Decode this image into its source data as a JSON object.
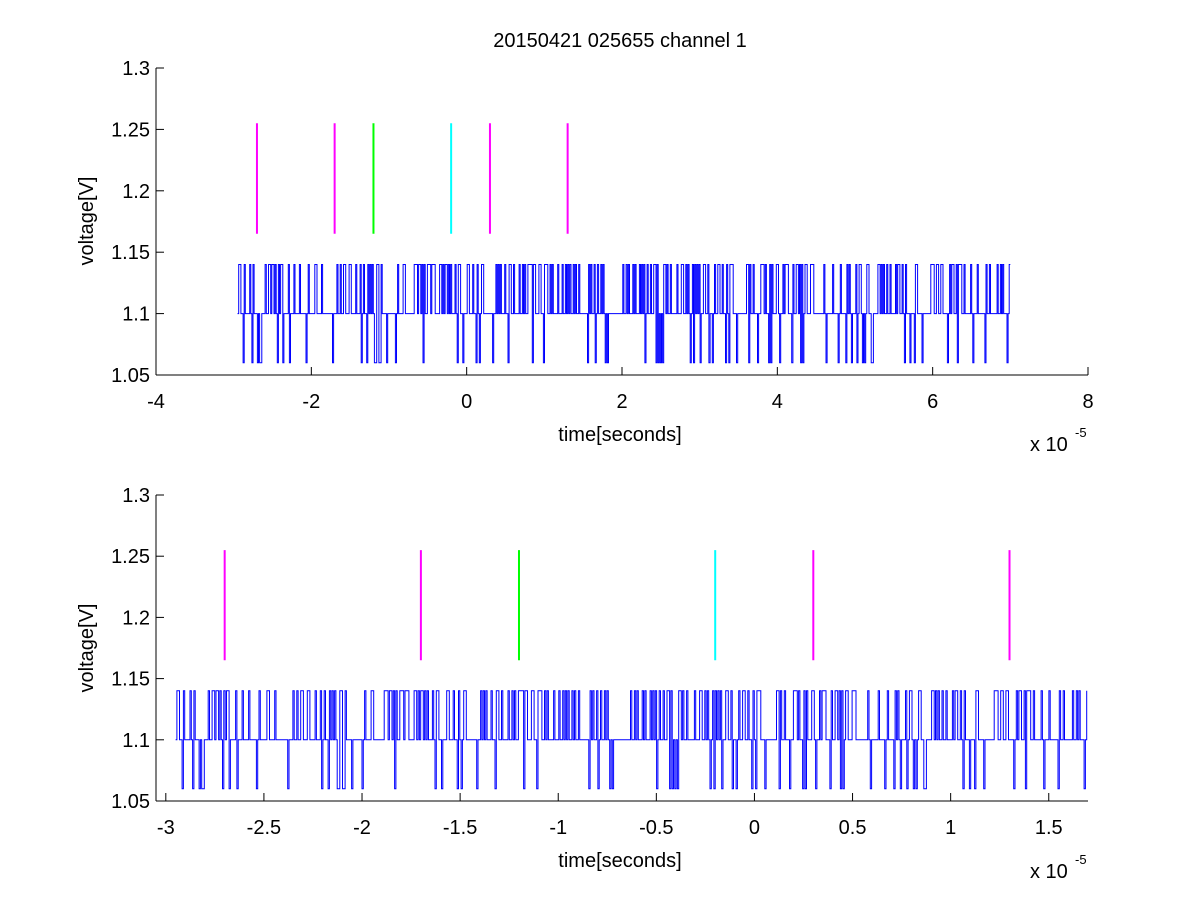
{
  "figure": {
    "title": "20150421 025655 channel 1"
  },
  "colors": {
    "trace": "#0000ff",
    "magenta": "#ff00ff",
    "green": "#00ff00",
    "cyan": "#00ffff",
    "axis": "#000000"
  },
  "chart_data": [
    {
      "type": "line",
      "title": "20150421 025655 channel 1",
      "xlabel": "time[seconds]",
      "ylabel": "voltage[V]",
      "x_exponent_label": "x 10",
      "x_exponent": "-5",
      "xlim": [
        -4,
        8
      ],
      "ylim": [
        1.05,
        1.3
      ],
      "xticks": [
        -4,
        -2,
        0,
        2,
        4,
        6,
        8
      ],
      "xtick_labels": [
        "-4",
        "-2",
        "0",
        "2",
        "4",
        "6",
        "8"
      ],
      "yticks": [
        1.05,
        1.1,
        1.15,
        1.2,
        1.25,
        1.3
      ],
      "ytick_labels": [
        "1.05",
        "1.1",
        "1.15",
        "1.2",
        "1.25",
        "1.3"
      ],
      "grid": false,
      "series": [
        {
          "kind": "step-noise",
          "x_range": [
            -2.95,
            7.0
          ],
          "levels": [
            1.06,
            1.1,
            1.14
          ],
          "baseline": 1.1
        }
      ],
      "markers": [
        {
          "x": -2.7,
          "y_range": [
            1.165,
            1.255
          ],
          "color": "magenta"
        },
        {
          "x": -1.7,
          "y_range": [
            1.165,
            1.255
          ],
          "color": "magenta"
        },
        {
          "x": -1.2,
          "y_range": [
            1.165,
            1.255
          ],
          "color": "green"
        },
        {
          "x": -0.2,
          "y_range": [
            1.165,
            1.255
          ],
          "color": "cyan"
        },
        {
          "x": 0.3,
          "y_range": [
            1.165,
            1.255
          ],
          "color": "magenta"
        },
        {
          "x": 1.3,
          "y_range": [
            1.165,
            1.255
          ],
          "color": "magenta"
        }
      ]
    },
    {
      "type": "line",
      "title": "",
      "xlabel": "time[seconds]",
      "ylabel": "voltage[V]",
      "x_exponent_label": "x 10",
      "x_exponent": "-5",
      "xlim": [
        -3.05,
        1.7
      ],
      "ylim": [
        1.05,
        1.3
      ],
      "xticks": [
        -3,
        -2.5,
        -2,
        -1.5,
        -1,
        -0.5,
        0,
        0.5,
        1,
        1.5
      ],
      "xtick_labels": [
        "-3",
        "-2.5",
        "-2",
        "-1.5",
        "-1",
        "-0.5",
        "0",
        "0.5",
        "1",
        "1.5"
      ],
      "yticks": [
        1.05,
        1.1,
        1.15,
        1.2,
        1.25,
        1.3
      ],
      "ytick_labels": [
        "1.05",
        "1.1",
        "1.15",
        "1.2",
        "1.25",
        "1.3"
      ],
      "grid": false,
      "series": [
        {
          "kind": "step-noise",
          "x_range": [
            -2.95,
            1.7
          ],
          "levels": [
            1.06,
            1.1,
            1.14
          ],
          "baseline": 1.1
        }
      ],
      "markers": [
        {
          "x": -2.7,
          "y_range": [
            1.165,
            1.255
          ],
          "color": "magenta"
        },
        {
          "x": -1.7,
          "y_range": [
            1.165,
            1.255
          ],
          "color": "magenta"
        },
        {
          "x": -1.2,
          "y_range": [
            1.165,
            1.255
          ],
          "color": "green"
        },
        {
          "x": -0.2,
          "y_range": [
            1.165,
            1.255
          ],
          "color": "cyan"
        },
        {
          "x": 0.3,
          "y_range": [
            1.165,
            1.255
          ],
          "color": "magenta"
        },
        {
          "x": 1.3,
          "y_range": [
            1.165,
            1.255
          ],
          "color": "magenta"
        }
      ]
    }
  ]
}
